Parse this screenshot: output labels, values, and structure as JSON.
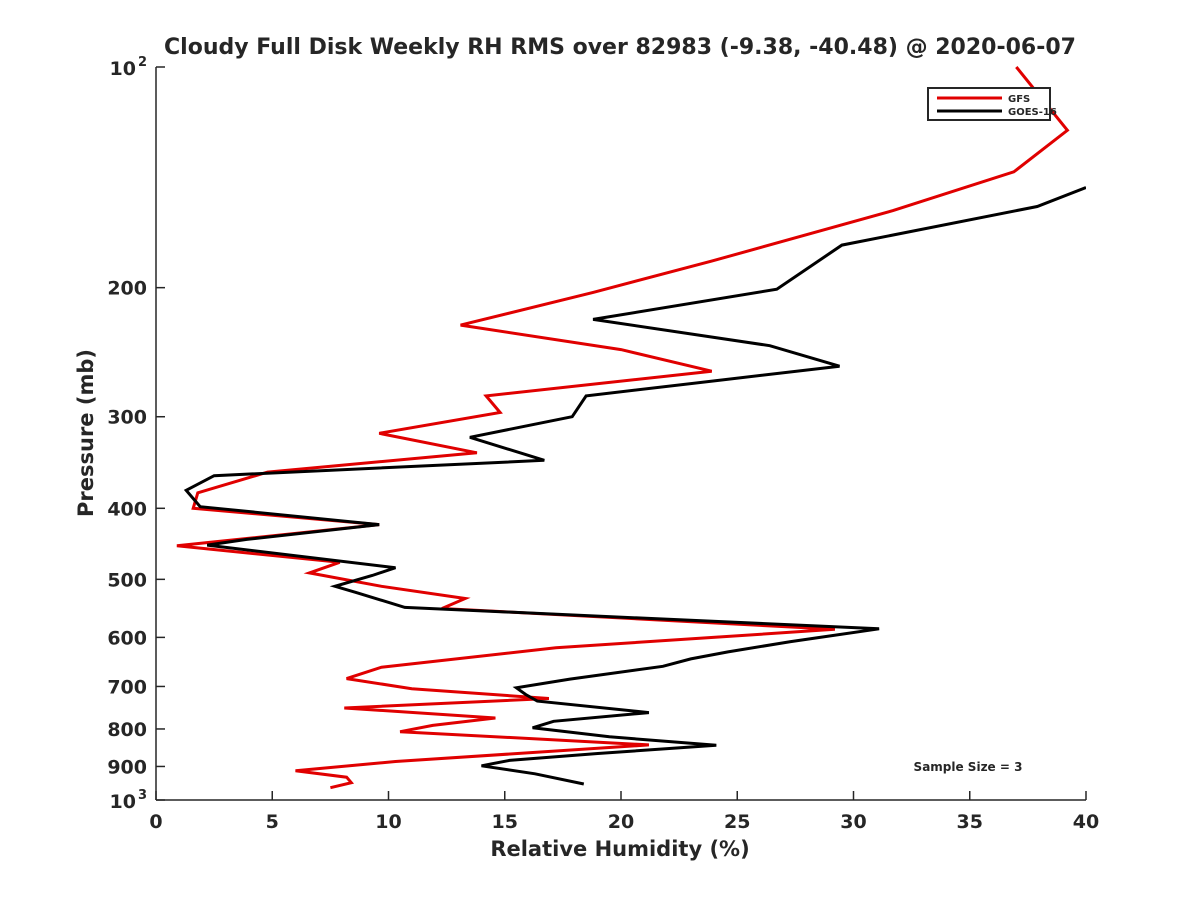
{
  "chart_data": {
    "type": "line",
    "title": "Cloudy Full Disk Weekly RH RMS over 82983 (-9.38, -40.48) @ 2020-06-07",
    "xlabel": "Relative Humidity (%)",
    "ylabel": "Pressure (mb)",
    "xlim": [
      0,
      40
    ],
    "ylim": [
      100,
      1000
    ],
    "y_scale": "log",
    "y_reversed": true,
    "grid": false,
    "legend_position": "top-right",
    "x_ticks": [
      {
        "value": 0,
        "label": "0"
      },
      {
        "value": 5,
        "label": "5"
      },
      {
        "value": 10,
        "label": "10"
      },
      {
        "value": 15,
        "label": "15"
      },
      {
        "value": 20,
        "label": "20"
      },
      {
        "value": 25,
        "label": "25"
      },
      {
        "value": 30,
        "label": "30"
      },
      {
        "value": 35,
        "label": "35"
      },
      {
        "value": 40,
        "label": "40"
      }
    ],
    "y_ticks": [
      {
        "value": 100,
        "base": "10",
        "exp": "2"
      },
      {
        "value": 200,
        "label": "200"
      },
      {
        "value": 300,
        "label": "300"
      },
      {
        "value": 400,
        "label": "400"
      },
      {
        "value": 500,
        "label": "500"
      },
      {
        "value": 600,
        "label": "600"
      },
      {
        "value": 700,
        "label": "700"
      },
      {
        "value": 800,
        "label": "800"
      },
      {
        "value": 900,
        "label": "900"
      },
      {
        "value": 1000,
        "base": "10",
        "exp": "3"
      }
    ],
    "annotation": "Sample Size = 3",
    "series": [
      {
        "name": "GFS",
        "color": "#e00000",
        "points": [
          [
            37.0,
            100
          ],
          [
            39.2,
            122
          ],
          [
            36.9,
            139
          ],
          [
            31.7,
            157
          ],
          [
            23.9,
            184
          ],
          [
            18.8,
            203
          ],
          [
            13.1,
            225
          ],
          [
            20.0,
            243
          ],
          [
            23.9,
            260
          ],
          [
            14.2,
            281
          ],
          [
            14.8,
            296
          ],
          [
            9.6,
            316
          ],
          [
            13.8,
            336
          ],
          [
            4.8,
            357
          ],
          [
            1.8,
            381
          ],
          [
            1.6,
            400
          ],
          [
            9.6,
            421
          ],
          [
            0.9,
            450
          ],
          [
            7.9,
            474
          ],
          [
            6.6,
            490
          ],
          [
            9.7,
            511
          ],
          [
            13.3,
            531
          ],
          [
            12.3,
            548
          ],
          [
            29.2,
            585
          ],
          [
            17.2,
            620
          ],
          [
            9.7,
            659
          ],
          [
            8.2,
            683
          ],
          [
            11.0,
            705
          ],
          [
            16.9,
            727
          ],
          [
            8.1,
            749
          ],
          [
            14.6,
            773
          ],
          [
            11.9,
            791
          ],
          [
            10.5,
            807
          ],
          [
            21.2,
            841
          ],
          [
            10.3,
            886
          ],
          [
            6.0,
            912
          ],
          [
            8.2,
            931
          ],
          [
            8.4,
            947
          ],
          [
            7.5,
            962
          ]
        ]
      },
      {
        "name": "GOES-16",
        "color": "#000000",
        "points": [
          [
            40.0,
            146
          ],
          [
            37.9,
            155
          ],
          [
            29.5,
            175
          ],
          [
            26.7,
            201
          ],
          [
            18.8,
            221
          ],
          [
            26.4,
            240
          ],
          [
            29.4,
            256
          ],
          [
            18.5,
            281
          ],
          [
            17.9,
            300
          ],
          [
            13.5,
            320
          ],
          [
            16.7,
            344
          ],
          [
            2.5,
            361
          ],
          [
            1.3,
            378
          ],
          [
            1.9,
            398
          ],
          [
            9.6,
            421
          ],
          [
            3.9,
            441
          ],
          [
            2.2,
            449
          ],
          [
            10.3,
            482
          ],
          [
            9.3,
            494
          ],
          [
            7.7,
            511
          ],
          [
            8.6,
            521
          ],
          [
            10.7,
            546
          ],
          [
            31.1,
            584
          ],
          [
            27.3,
            608
          ],
          [
            24.6,
            628
          ],
          [
            23.0,
            642
          ],
          [
            21.8,
            657
          ],
          [
            17.8,
            684
          ],
          [
            15.5,
            703
          ],
          [
            15.9,
            718
          ],
          [
            16.4,
            733
          ],
          [
            21.2,
            760
          ],
          [
            17.1,
            781
          ],
          [
            16.2,
            797
          ],
          [
            19.5,
            820
          ],
          [
            24.1,
            842
          ],
          [
            19.0,
            864
          ],
          [
            15.2,
            883
          ],
          [
            14.0,
            898
          ],
          [
            16.3,
            921
          ],
          [
            18.4,
            951
          ]
        ]
      }
    ]
  }
}
